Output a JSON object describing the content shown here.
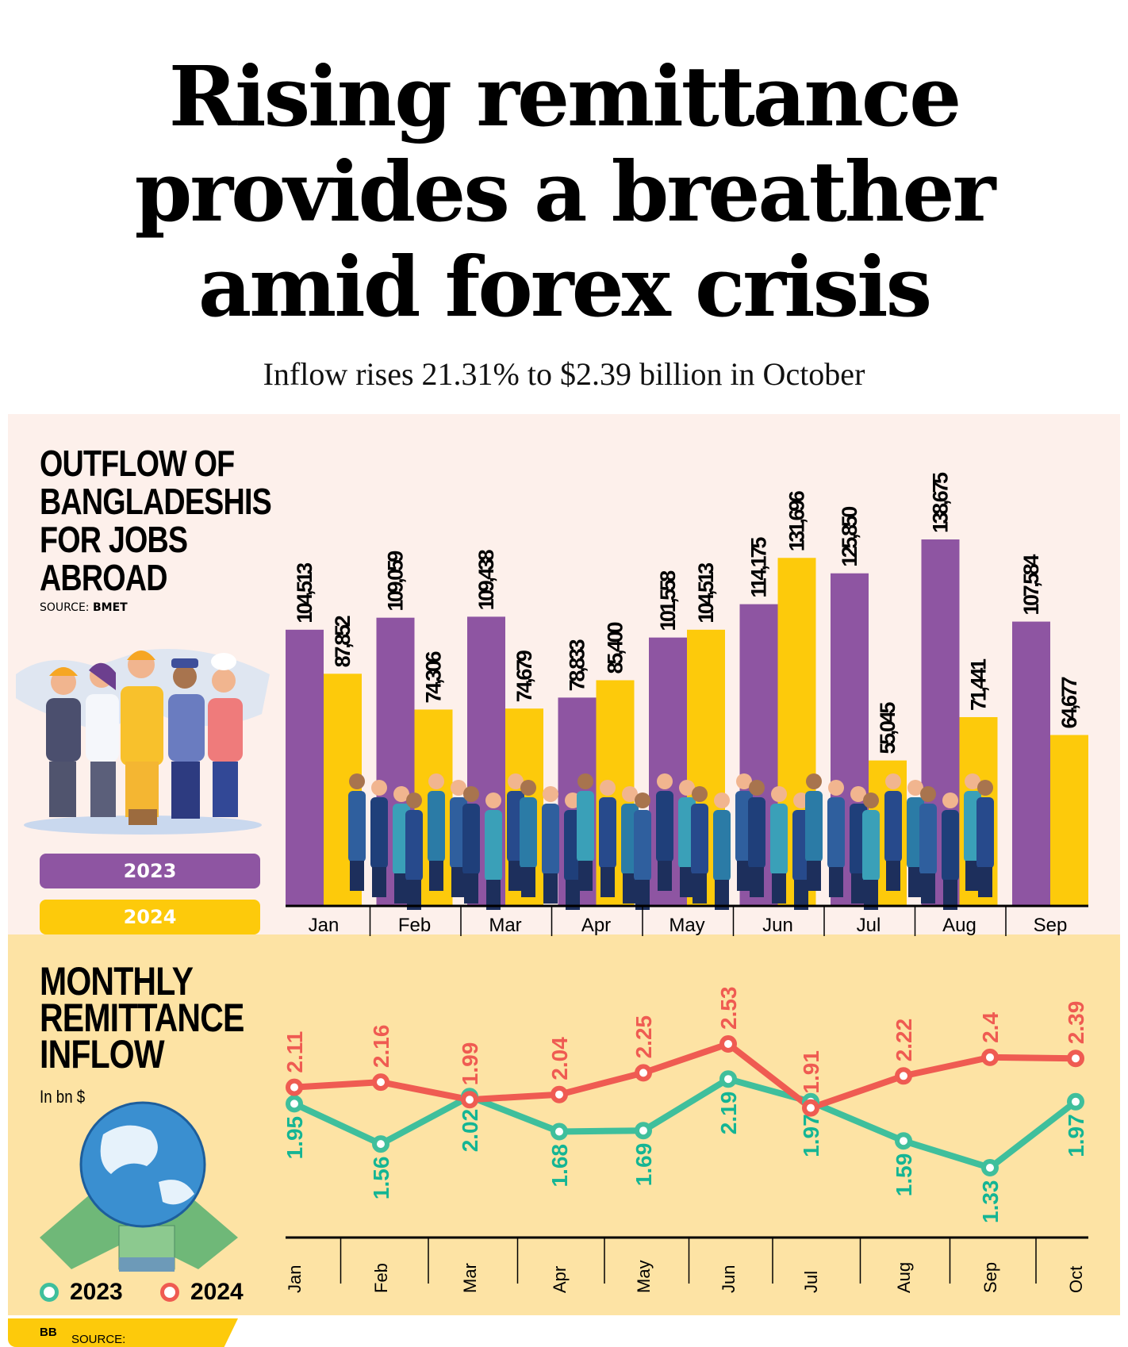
{
  "header": {
    "title_lines": [
      "Rising remittance",
      "provides a breather",
      "amid forex crisis"
    ],
    "subtitle": "Inflow rises 21.31% to $2.39 billion in October"
  },
  "outflow_panel": {
    "heading_lines": [
      "OUTFLOW OF",
      "BANGLADESHIS",
      "FOR JOBS",
      "ABROAD"
    ],
    "source_label": "SOURCE:",
    "source_value": "BMET",
    "legend": [
      "2023",
      "2024"
    ]
  },
  "remittance_panel": {
    "heading_lines": [
      "MONTHLY",
      "REMITTANCE",
      "INFLOW"
    ],
    "unit": "In bn $",
    "legend": [
      "2023",
      "2024"
    ],
    "source_label": "SOURCE:",
    "source_value": "BB"
  },
  "colors": {
    "purple": "#8e55a2",
    "yellow": "#fdca0b",
    "teal": "#3fbf9c",
    "teal_text": "#14b594",
    "red": "#ef5b52",
    "panel1_bg": "#fdf0eb",
    "panel2_bg": "#fde3a4"
  },
  "chart_data": [
    {
      "type": "bar",
      "title": "OUTFLOW OF BANGLADESHIS FOR JOBS ABROAD",
      "categories": [
        "Jan",
        "Feb",
        "Mar",
        "Apr",
        "May",
        "Jun",
        "Jul",
        "Aug",
        "Sep"
      ],
      "series": [
        {
          "name": "2023",
          "values": [
            104513,
            109059,
            109438,
            78833,
            101558,
            114175,
            125850,
            138675,
            107584
          ],
          "labels": [
            "104,513",
            "109,059",
            "109,438",
            "78,833",
            "101,558",
            "114,175",
            "125,850",
            "138,675",
            "107,584"
          ]
        },
        {
          "name": "2024",
          "values": [
            87852,
            74306,
            74679,
            85400,
            104513,
            131696,
            55045,
            71441,
            64677
          ],
          "labels": [
            "87,852",
            "74,306",
            "74,679",
            "85,400",
            "104,513",
            "131,696",
            "55,045",
            "71,441",
            "64,677"
          ]
        }
      ],
      "ylim": [
        0,
        140000
      ],
      "legend": "left"
    },
    {
      "type": "line",
      "title": "MONTHLY REMITTANCE INFLOW",
      "ylabel": "In bn $",
      "categories": [
        "Jan",
        "Feb",
        "Mar",
        "Apr",
        "May",
        "Jun",
        "Jul",
        "Aug",
        "Sep",
        "Oct"
      ],
      "series": [
        {
          "name": "2023",
          "values": [
            1.95,
            1.56,
            2.02,
            1.68,
            1.69,
            2.19,
            1.97,
            1.59,
            1.33,
            1.97
          ],
          "labels": [
            "1.95",
            "1.56",
            "2.02",
            "1.68",
            "1.69",
            "2.19",
            "1.97",
            "1.59",
            "1.33",
            "1.97"
          ]
        },
        {
          "name": "2024",
          "values": [
            2.11,
            2.16,
            1.99,
            2.04,
            2.25,
            2.53,
            1.91,
            2.22,
            2.4,
            2.39
          ],
          "labels": [
            "2.11",
            "2.16",
            "1.99",
            "2.04",
            "2.25",
            "2.53",
            "1.91",
            "2.22",
            "2.4",
            "2.39"
          ]
        }
      ],
      "legend": "bottom-left"
    }
  ]
}
